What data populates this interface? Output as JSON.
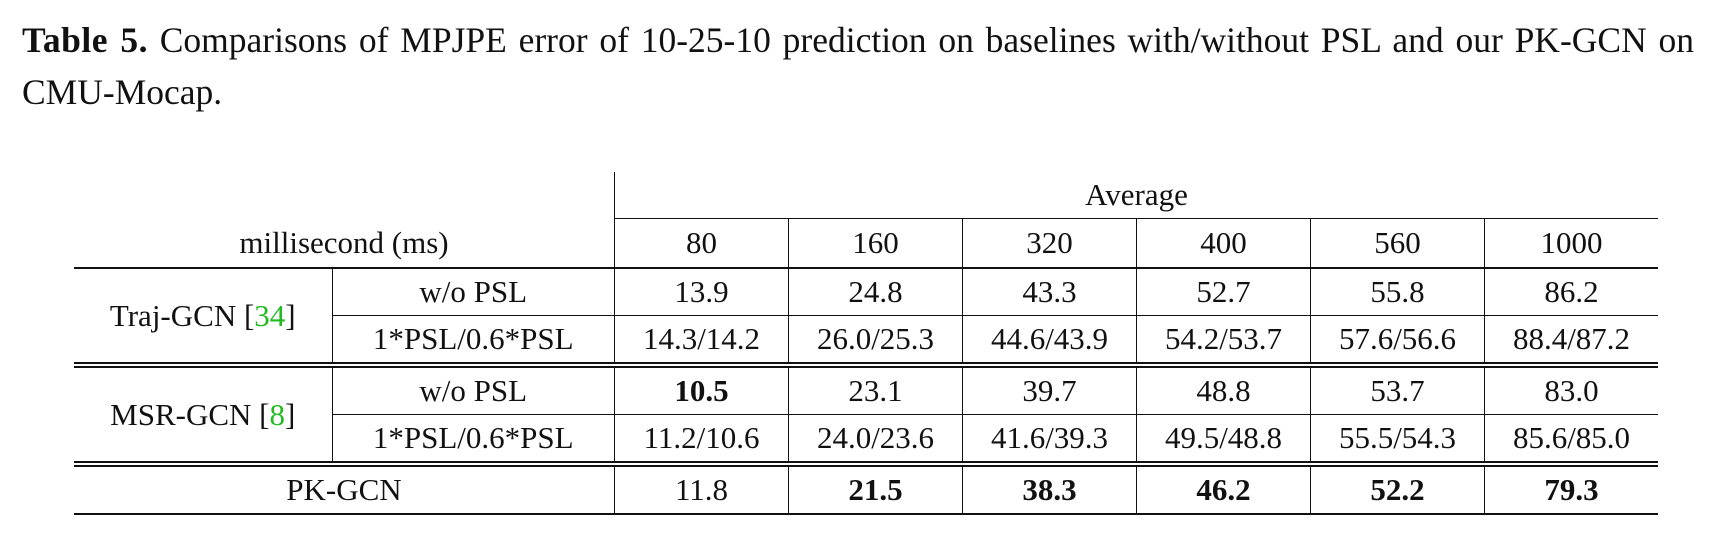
{
  "caption": {
    "label": "Table 5.",
    "text": "Comparisons of MPJPE error of 10-25-10 prediction on baselines with/without PSL and our PK-GCN on CMU-Mocap."
  },
  "table": {
    "group_header": "Average",
    "row_header": "millisecond (ms)",
    "columns": [
      "80",
      "160",
      "320",
      "400",
      "560",
      "1000"
    ],
    "groups": [
      {
        "method": "Traj-GCN [",
        "cite": "34",
        "close": "]",
        "rows": [
          {
            "setting": "w/o PSL",
            "values": [
              "13.9",
              "24.8",
              "43.3",
              "52.7",
              "55.8",
              "86.2"
            ]
          },
          {
            "setting": "1*PSL/0.6*PSL",
            "values": [
              "14.3/14.2",
              "26.0/25.3",
              "44.6/43.9",
              "54.2/53.7",
              "57.6/56.6",
              "88.4/87.2"
            ]
          }
        ]
      },
      {
        "method": "MSR-GCN [",
        "cite": "8",
        "close": "]",
        "rows": [
          {
            "setting": "w/o PSL",
            "values": [
              "10.5",
              "23.1",
              "39.7",
              "48.8",
              "53.7",
              "83.0"
            ]
          },
          {
            "setting": "1*PSL/0.6*PSL",
            "values": [
              "11.2/10.6",
              "24.0/23.6",
              "41.6/39.3",
              "49.5/48.8",
              "55.5/54.3",
              "85.6/85.0"
            ]
          }
        ]
      }
    ],
    "ours": {
      "method": "PK-GCN",
      "values": [
        "11.8",
        "21.5",
        "38.3",
        "46.2",
        "52.2",
        "79.3"
      ]
    }
  },
  "colors": {
    "citation": "#22bb22",
    "text": "#111111"
  }
}
